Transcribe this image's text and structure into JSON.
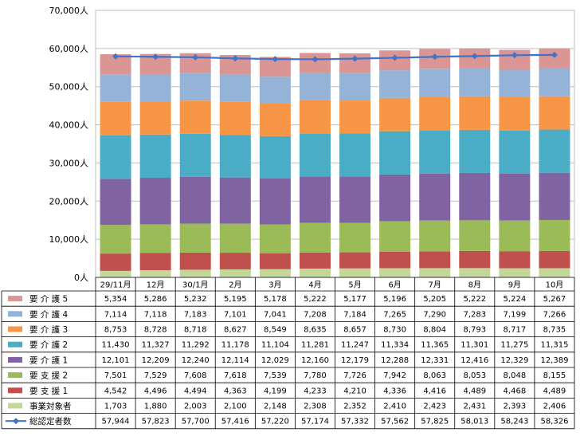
{
  "chart_data": {
    "type": "bar",
    "stacked": true,
    "ylim": [
      0,
      70000
    ],
    "y_unit": "人",
    "yticks": [
      0,
      10000,
      20000,
      30000,
      40000,
      50000,
      60000,
      70000
    ],
    "ytick_labels": [
      "0人",
      "10,000人",
      "20,000人",
      "30,000人",
      "40,000人",
      "50,000人",
      "60,000人",
      "70,000人"
    ],
    "categories": [
      "29/11月",
      "12月",
      "30/1月",
      "2月",
      "3月",
      "4月",
      "5月",
      "6月",
      "7月",
      "8月",
      "9月",
      "10月"
    ],
    "legend_placement": "data-table-left",
    "series": [
      {
        "name": "事業対象者",
        "color": "#C4D79B",
        "values": [
          1703,
          1880,
          2003,
          2100,
          2148,
          2308,
          2352,
          2410,
          2423,
          2431,
          2393,
          2406
        ],
        "labels": [
          "1,703",
          "1,880",
          "2,003",
          "2,100",
          "2,148",
          "2,308",
          "2,352",
          "2,410",
          "2,423",
          "2,431",
          "2,393",
          "2,406"
        ]
      },
      {
        "name": "要 支 援 1",
        "color": "#C0504D",
        "values": [
          4542,
          4496,
          4494,
          4363,
          4199,
          4233,
          4210,
          4336,
          4416,
          4489,
          4468,
          4489
        ],
        "labels": [
          "4,542",
          "4,496",
          "4,494",
          "4,363",
          "4,199",
          "4,233",
          "4,210",
          "4,336",
          "4,416",
          "4,489",
          "4,468",
          "4,489"
        ]
      },
      {
        "name": "要 支 援 2",
        "color": "#9BBB59",
        "values": [
          7501,
          7529,
          7608,
          7618,
          7539,
          7780,
          7726,
          7942,
          8063,
          8053,
          8048,
          8155
        ],
        "labels": [
          "7,501",
          "7,529",
          "7,608",
          "7,618",
          "7,539",
          "7,780",
          "7,726",
          "7,942",
          "8,063",
          "8,053",
          "8,048",
          "8,155"
        ]
      },
      {
        "name": "要 介 護 1",
        "color": "#8064A2",
        "values": [
          12101,
          12209,
          12240,
          12114,
          12029,
          12160,
          12179,
          12288,
          12331,
          12416,
          12329,
          12389
        ],
        "labels": [
          "12,101",
          "12,209",
          "12,240",
          "12,114",
          "12,029",
          "12,160",
          "12,179",
          "12,288",
          "12,331",
          "12,416",
          "12,329",
          "12,389"
        ]
      },
      {
        "name": "要 介 護 2",
        "color": "#4BACC6",
        "values": [
          11430,
          11327,
          11292,
          11178,
          11104,
          11281,
          11247,
          11334,
          11365,
          11301,
          11275,
          11315
        ],
        "labels": [
          "11,430",
          "11,327",
          "11,292",
          "11,178",
          "11,104",
          "11,281",
          "11,247",
          "11,334",
          "11,365",
          "11,301",
          "11,275",
          "11,315"
        ]
      },
      {
        "name": "要 介 護 3",
        "color": "#F79646",
        "values": [
          8753,
          8728,
          8718,
          8627,
          8549,
          8635,
          8657,
          8730,
          8804,
          8793,
          8717,
          8735
        ],
        "labels": [
          "8,753",
          "8,728",
          "8,718",
          "8,627",
          "8,549",
          "8,635",
          "8,657",
          "8,730",
          "8,804",
          "8,793",
          "8,717",
          "8,735"
        ]
      },
      {
        "name": "要 介 護 4",
        "color": "#95B3D7",
        "values": [
          7114,
          7118,
          7183,
          7101,
          7041,
          7208,
          7184,
          7265,
          7290,
          7283,
          7199,
          7266
        ],
        "labels": [
          "7,114",
          "7,118",
          "7,183",
          "7,101",
          "7,041",
          "7,208",
          "7,184",
          "7,265",
          "7,290",
          "7,283",
          "7,199",
          "7,266"
        ]
      },
      {
        "name": "要 介 護 5",
        "color": "#DA9694",
        "values": [
          5354,
          5286,
          5232,
          5195,
          5178,
          5222,
          5177,
          5196,
          5205,
          5222,
          5224,
          5267
        ],
        "labels": [
          "5,354",
          "5,286",
          "5,232",
          "5,195",
          "5,178",
          "5,222",
          "5,177",
          "5,196",
          "5,205",
          "5,222",
          "5,224",
          "5,267"
        ]
      }
    ],
    "line_series": {
      "name": "総認定者数",
      "color": "#4472C4",
      "values": [
        57944,
        57823,
        57700,
        57416,
        57220,
        57174,
        57332,
        57562,
        57825,
        58013,
        58243,
        58326
      ],
      "labels": [
        "57,944",
        "57,823",
        "57,700",
        "57,416",
        "57,220",
        "57,174",
        "57,332",
        "57,562",
        "57,825",
        "58,013",
        "58,243",
        "58,326"
      ]
    },
    "table_row_order": [
      "要 介 護 5",
      "要 介 護 4",
      "要 介 護 3",
      "要 介 護 2",
      "要 介 護 1",
      "要 支 援 2",
      "要 支 援 1",
      "事業対象者",
      "総認定者数"
    ]
  }
}
